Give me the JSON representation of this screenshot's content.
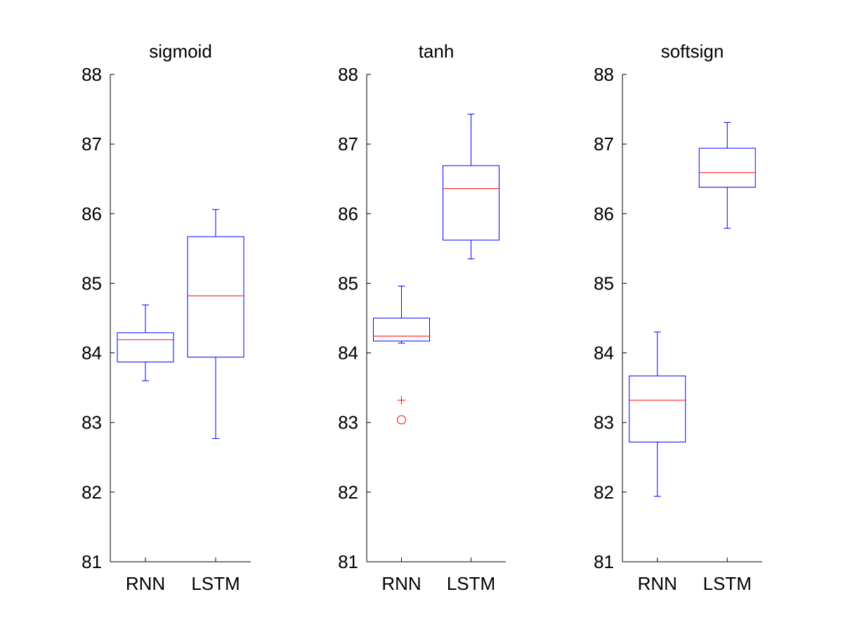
{
  "chart_data": [
    {
      "type": "box",
      "title": "sigmoid",
      "categories": [
        "RNN",
        "LSTM"
      ],
      "ylim": [
        81,
        88
      ],
      "yticks": [
        81,
        82,
        83,
        84,
        85,
        86,
        87,
        88
      ],
      "grid": false,
      "boxes": [
        {
          "category": "RNN",
          "whisker_low": 83.6,
          "q1": 83.87,
          "median": 84.19,
          "q3": 84.29,
          "whisker_high": 84.69,
          "outliers": []
        },
        {
          "category": "LSTM",
          "whisker_low": 82.77,
          "q1": 83.94,
          "median": 84.82,
          "q3": 85.67,
          "whisker_high": 86.06,
          "outliers": []
        }
      ]
    },
    {
      "type": "box",
      "title": "tanh",
      "categories": [
        "RNN",
        "LSTM"
      ],
      "ylim": [
        81,
        88
      ],
      "yticks": [
        81,
        82,
        83,
        84,
        85,
        86,
        87,
        88
      ],
      "grid": false,
      "boxes": [
        {
          "category": "RNN",
          "whisker_low": 84.14,
          "q1": 84.17,
          "median": 84.24,
          "q3": 84.5,
          "whisker_high": 84.96,
          "outliers": [
            {
              "y": 83.32,
              "marker": "plus"
            },
            {
              "y": 83.04,
              "marker": "circle"
            }
          ]
        },
        {
          "category": "LSTM",
          "whisker_low": 85.35,
          "q1": 85.62,
          "median": 86.36,
          "q3": 86.69,
          "whisker_high": 87.43,
          "outliers": []
        }
      ]
    },
    {
      "type": "box",
      "title": "softsign",
      "categories": [
        "RNN",
        "LSTM"
      ],
      "ylim": [
        81,
        88
      ],
      "yticks": [
        81,
        82,
        83,
        84,
        85,
        86,
        87,
        88
      ],
      "grid": false,
      "boxes": [
        {
          "category": "RNN",
          "whisker_low": 81.94,
          "q1": 82.72,
          "median": 83.32,
          "q3": 83.67,
          "whisker_high": 84.3,
          "outliers": []
        },
        {
          "category": "LSTM",
          "whisker_low": 85.79,
          "q1": 86.38,
          "median": 86.59,
          "q3": 86.94,
          "whisker_high": 87.31,
          "outliers": []
        }
      ]
    }
  ],
  "colors": {
    "box": "#0000ff",
    "median": "#ff0000",
    "outlier": "#ff0000",
    "axis": "#000000"
  }
}
